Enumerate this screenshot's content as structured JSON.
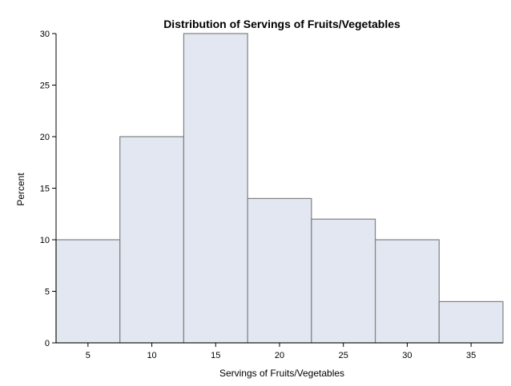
{
  "chart_data": {
    "type": "bar",
    "title": "Distribution of Servings of Fruits/Vegetables",
    "xlabel": "Servings of Fruits/Vegetables",
    "ylabel": "Percent",
    "categories": [
      "5",
      "10",
      "15",
      "20",
      "25",
      "30",
      "35"
    ],
    "bin_width": 5,
    "values": [
      10,
      20,
      30,
      14,
      12,
      10,
      4
    ],
    "xlim": [
      2.5,
      37.5
    ],
    "ylim": [
      0,
      30
    ],
    "y_ticks": [
      0,
      5,
      10,
      15,
      20,
      25,
      30
    ],
    "x_ticks": [
      5,
      10,
      15,
      20,
      25,
      30,
      35
    ],
    "grid": false,
    "legend": "none",
    "bar_color": "#e3e7f1",
    "bar_edge_color": "#808080"
  }
}
